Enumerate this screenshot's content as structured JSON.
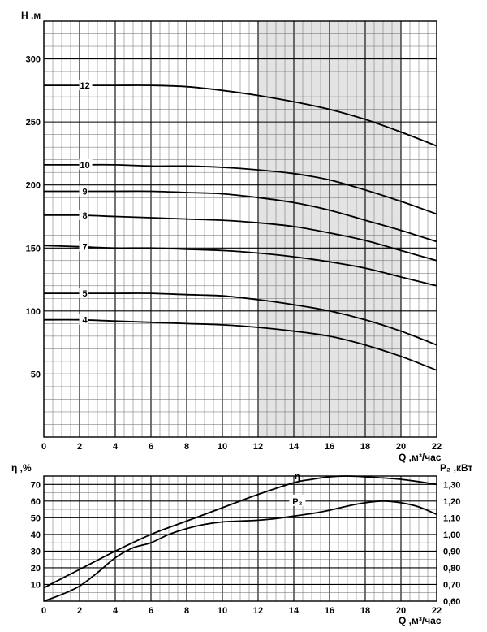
{
  "chart_data": [
    {
      "type": "line",
      "ylabel": "H ,м",
      "xlabel": "Q ,м³/час",
      "xlim": [
        0,
        22
      ],
      "ylim": [
        0,
        330
      ],
      "x_ticks": [
        "0",
        "2",
        "4",
        "6",
        "8",
        "10",
        "12",
        "14",
        "16",
        "18",
        "20",
        "22"
      ],
      "y_ticks": [
        "50",
        "100",
        "150",
        "200",
        "250",
        "300"
      ],
      "y_tick_values": [
        50,
        100,
        150,
        200,
        250,
        300
      ],
      "grid": true,
      "shaded_range": {
        "x": [
          12,
          20
        ],
        "color": "#e3e3e3"
      },
      "x": [
        0,
        2,
        4,
        6,
        8,
        10,
        12,
        14,
        16,
        18,
        20,
        22
      ],
      "series": [
        {
          "name": "12",
          "values": [
            279,
            279,
            279,
            279,
            278,
            275,
            271,
            266,
            260,
            252,
            242,
            231
          ]
        },
        {
          "name": "10",
          "values": [
            216,
            216,
            216,
            215,
            215,
            214,
            212,
            209,
            204,
            196,
            187,
            177
          ]
        },
        {
          "name": "9",
          "values": [
            195,
            195,
            195,
            195,
            194,
            193,
            190,
            186,
            180,
            172,
            164,
            155
          ]
        },
        {
          "name": "8",
          "values": [
            176,
            176,
            175,
            174,
            173,
            172,
            170,
            167,
            162,
            156,
            148,
            140
          ]
        },
        {
          "name": "7",
          "values": [
            152,
            151,
            150,
            150,
            149,
            148,
            146,
            143,
            139,
            134,
            127,
            120
          ]
        },
        {
          "name": "5",
          "values": [
            114,
            114,
            114,
            114,
            113,
            112,
            109,
            105,
            100,
            93,
            84,
            73
          ]
        },
        {
          "name": "4",
          "values": [
            93,
            93,
            92,
            91,
            90,
            89,
            87,
            84,
            80,
            73,
            64,
            53
          ]
        }
      ]
    },
    {
      "type": "line",
      "ylabel": "η ,%",
      "ylabel_right": "P₂ ,кВт",
      "xlabel": "Q ,м³/час",
      "xlim": [
        0,
        22
      ],
      "ylim": [
        0,
        75
      ],
      "ylim_right": [
        0.6,
        1.35
      ],
      "x_ticks": [
        "0",
        "2",
        "4",
        "6",
        "8",
        "10",
        "12",
        "14",
        "16",
        "18",
        "20",
        "22"
      ],
      "y_ticks": [
        "10",
        "20",
        "30",
        "40",
        "50",
        "60",
        "70"
      ],
      "y_tick_values": [
        10,
        20,
        30,
        40,
        50,
        60,
        70
      ],
      "y_ticks_right": [
        "0,60",
        "0,70",
        "0,80",
        "0,90",
        "1,00",
        "1,10",
        "1,20",
        "1,30"
      ],
      "y_tick_values_right": [
        0.6,
        0.7,
        0.8,
        0.9,
        1.0,
        1.1,
        1.2,
        1.3
      ],
      "grid": true,
      "series": [
        {
          "name": "η",
          "axis": "left",
          "x": [
            0,
            2,
            4,
            6,
            8,
            10,
            12,
            14,
            15,
            16,
            17,
            18,
            20,
            22
          ],
          "values": [
            8,
            19,
            30,
            40,
            48,
            56,
            64,
            71,
            73,
            74.5,
            75,
            74.5,
            73,
            70
          ]
        },
        {
          "name": "P₂",
          "axis": "right",
          "x": [
            0,
            1,
            2,
            3,
            4,
            5,
            6,
            7,
            8,
            9,
            10,
            11,
            12,
            13,
            14,
            15,
            16,
            17,
            18,
            19,
            20,
            21,
            22
          ],
          "values": [
            0.6,
            0.64,
            0.69,
            0.77,
            0.86,
            0.92,
            0.95,
            1.0,
            1.035,
            1.06,
            1.075,
            1.08,
            1.085,
            1.095,
            1.11,
            1.125,
            1.145,
            1.17,
            1.19,
            1.2,
            1.19,
            1.165,
            1.12
          ]
        }
      ]
    }
  ]
}
